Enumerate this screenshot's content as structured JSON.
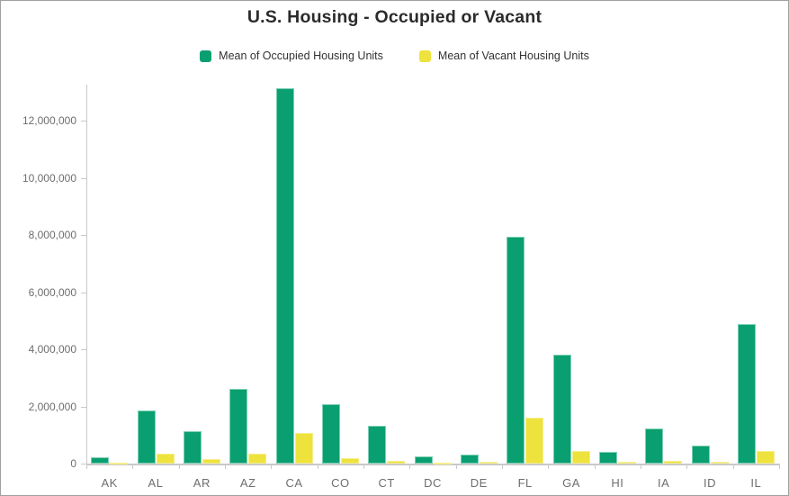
{
  "title": "U.S. Housing - Occupied or Vacant",
  "legend": [
    {
      "label": "Mean of Occupied Housing Units",
      "color": "#0a9f70"
    },
    {
      "label": "Mean of Vacant Housing Units",
      "color": "#eee23c"
    }
  ],
  "chart_data": {
    "type": "bar",
    "title": "U.S. Housing - Occupied or Vacant",
    "xlabel": "",
    "ylabel": "",
    "categories": [
      "AK",
      "AL",
      "AR",
      "AZ",
      "CA",
      "CO",
      "CT",
      "DC",
      "DE",
      "FL",
      "GA",
      "HI",
      "IA",
      "ID",
      "IL"
    ],
    "series": [
      {
        "name": "Mean of Occupied Housing Units",
        "color": "#0a9f70",
        "edge_color": "#7fd0b5",
        "values": [
          230000,
          1860000,
          1120000,
          2610000,
          13140000,
          2090000,
          1330000,
          260000,
          325000,
          7940000,
          3820000,
          420000,
          1230000,
          620000,
          4870000
        ]
      },
      {
        "name": "Mean of Vacant Housing Units",
        "color": "#eee23c",
        "edge_color": "#f5ee8a",
        "values": [
          40000,
          350000,
          160000,
          360000,
          1070000,
          200000,
          95000,
          20000,
          55000,
          1600000,
          450000,
          55000,
          105000,
          63000,
          440000
        ]
      }
    ],
    "ylim": [
      0,
      13260000
    ],
    "yticks": [
      0,
      2000000,
      4000000,
      6000000,
      8000000,
      10000000,
      12000000
    ],
    "ytick_labels": [
      "0",
      "2,000,000",
      "4,000,000",
      "6,000,000",
      "8,000,000",
      "10,000,000",
      "12,000,000"
    ],
    "grid": false,
    "legend_position": "top"
  },
  "colors": {
    "axis": "#c9c9c9",
    "tick_label": "#6e6e6e",
    "title_text": "#2b2b2b",
    "legend_text": "#323232",
    "frame_border": "#a0a0a0",
    "background": "#ffffff"
  }
}
